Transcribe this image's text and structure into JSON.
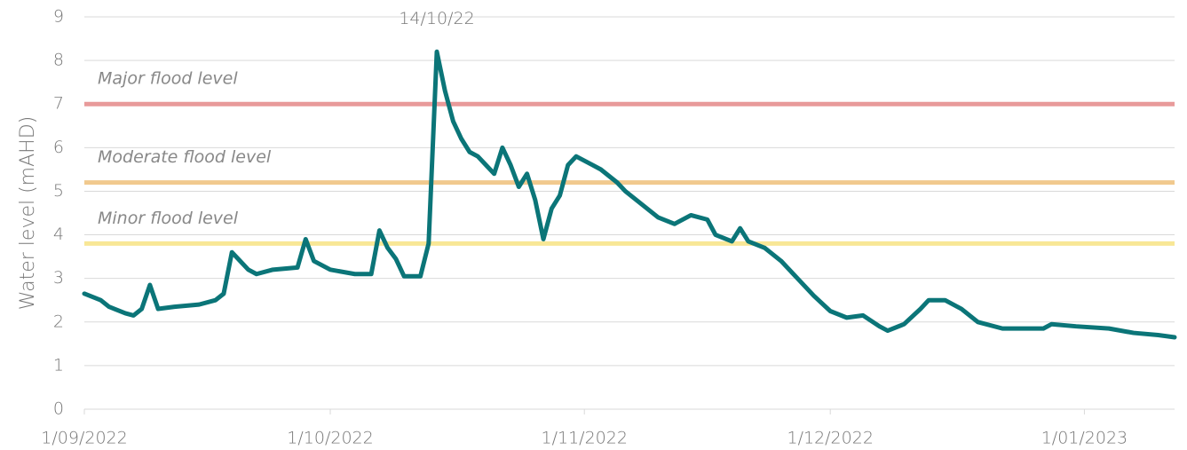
{
  "chart_data": {
    "type": "line",
    "y_label": "Water level (mAHD)",
    "color": "#0b7578",
    "x": [
      "2022-09-01",
      "2022-09-03",
      "2022-09-04",
      "2022-09-06",
      "2022-09-07",
      "2022-09-08",
      "2022-09-09",
      "2022-09-10",
      "2022-09-12",
      "2022-09-15",
      "2022-09-17",
      "2022-09-18",
      "2022-09-19",
      "2022-09-20",
      "2022-09-21",
      "2022-09-22",
      "2022-09-24",
      "2022-09-27",
      "2022-09-28",
      "2022-09-29",
      "2022-09-30",
      "2022-10-01",
      "2022-10-04",
      "2022-10-06",
      "2022-10-07",
      "2022-10-08",
      "2022-10-09",
      "2022-10-10",
      "2022-10-12",
      "2022-10-13",
      "2022-10-14",
      "2022-10-15",
      "2022-10-16",
      "2022-10-17",
      "2022-10-18",
      "2022-10-19",
      "2022-10-20",
      "2022-10-21",
      "2022-10-22",
      "2022-10-23",
      "2022-10-24",
      "2022-10-25",
      "2022-10-26",
      "2022-10-27",
      "2022-10-28",
      "2022-10-29",
      "2022-10-30",
      "2022-10-31",
      "2022-11-02",
      "2022-11-03",
      "2022-11-05",
      "2022-11-06",
      "2022-11-08",
      "2022-11-10",
      "2022-11-12",
      "2022-11-14",
      "2022-11-16",
      "2022-11-17",
      "2022-11-19",
      "2022-11-20",
      "2022-11-21",
      "2022-11-23",
      "2022-11-25",
      "2022-11-27",
      "2022-11-29",
      "2022-12-01",
      "2022-12-03",
      "2022-12-05",
      "2022-12-07",
      "2022-12-08",
      "2022-12-10",
      "2022-12-12",
      "2022-12-13",
      "2022-12-15",
      "2022-12-17",
      "2022-12-19",
      "2022-12-22",
      "2022-12-25",
      "2022-12-27",
      "2022-12-28",
      "2022-12-31",
      "2023-01-04",
      "2023-01-07",
      "2023-01-10",
      "2023-01-12"
    ],
    "values": [
      2.65,
      2.5,
      2.35,
      2.2,
      2.15,
      2.3,
      2.85,
      2.3,
      2.35,
      2.4,
      2.5,
      2.65,
      3.6,
      3.4,
      3.2,
      3.1,
      3.2,
      3.25,
      3.9,
      3.4,
      3.3,
      3.2,
      3.1,
      3.1,
      4.1,
      3.7,
      3.45,
      3.05,
      3.05,
      3.8,
      8.2,
      7.3,
      6.6,
      6.2,
      5.9,
      5.8,
      5.6,
      5.4,
      6.0,
      5.6,
      5.1,
      5.4,
      4.8,
      3.9,
      4.6,
      4.9,
      5.6,
      5.8,
      5.6,
      5.5,
      5.2,
      5.0,
      4.7,
      4.4,
      4.25,
      4.45,
      4.35,
      4.0,
      3.85,
      4.15,
      3.85,
      3.7,
      3.4,
      3.0,
      2.6,
      2.25,
      2.1,
      2.15,
      1.9,
      1.8,
      1.95,
      2.3,
      2.5,
      2.5,
      2.3,
      2.0,
      1.85,
      1.85,
      1.85,
      1.95,
      1.9,
      1.85,
      1.75,
      1.7,
      1.65
    ],
    "xlim": [
      "2022-09-01",
      "2023-01-12"
    ],
    "xticks": [
      {
        "value": "2022-09-01",
        "label": "1/09/2022"
      },
      {
        "value": "2022-10-01",
        "label": "1/10/2022"
      },
      {
        "value": "2022-11-01",
        "label": "1/11/2022"
      },
      {
        "value": "2022-12-01",
        "label": "1/12/2022"
      },
      {
        "value": "2023-01-01",
        "label": "1/01/2023"
      }
    ],
    "ylim": [
      0,
      9
    ],
    "yticks": [
      0,
      1,
      2,
      3,
      4,
      5,
      6,
      7,
      8,
      9
    ],
    "grid": true,
    "reference_lines": [
      {
        "label": "Major flood level",
        "value": 7,
        "color": "#e89a9a"
      },
      {
        "label": "Moderate flood level",
        "value": 5.2,
        "color": "#f1c98e"
      },
      {
        "label": "Minor flood level",
        "value": 3.8,
        "color": "#f8e796"
      }
    ],
    "annotations": [
      {
        "text": "14/10/22",
        "x": "2022-10-14",
        "y": 8.2
      }
    ]
  }
}
